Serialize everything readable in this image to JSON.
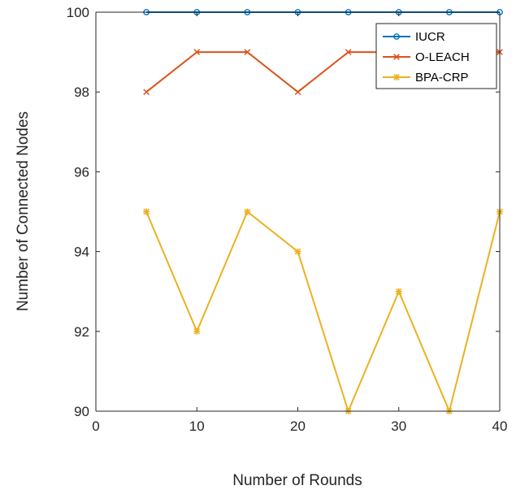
{
  "chart_data": {
    "type": "line",
    "title": "",
    "xlabel": "Number of Rounds",
    "ylabel": "Number of Connected Nodes",
    "xlim": [
      0,
      40
    ],
    "ylim": [
      90,
      100
    ],
    "xticks": [
      0,
      10,
      20,
      30,
      40
    ],
    "yticks": [
      90,
      92,
      94,
      96,
      98,
      100
    ],
    "grid": false,
    "legend_position": "top-right",
    "x": [
      5,
      10,
      15,
      20,
      25,
      30,
      35,
      40
    ],
    "series": [
      {
        "name": "IUCR",
        "color": "#0072BD",
        "marker": "circle",
        "values": [
          100,
          100,
          100,
          100,
          100,
          100,
          100,
          100
        ]
      },
      {
        "name": "O-LEACH",
        "color": "#D95319",
        "marker": "x",
        "values": [
          98,
          99,
          99,
          98,
          99,
          99,
          99,
          99
        ]
      },
      {
        "name": "BPA-CRP",
        "color": "#EDB120",
        "marker": "asterisk",
        "values": [
          95,
          92,
          95,
          94,
          90,
          93,
          90,
          95
        ]
      }
    ]
  }
}
